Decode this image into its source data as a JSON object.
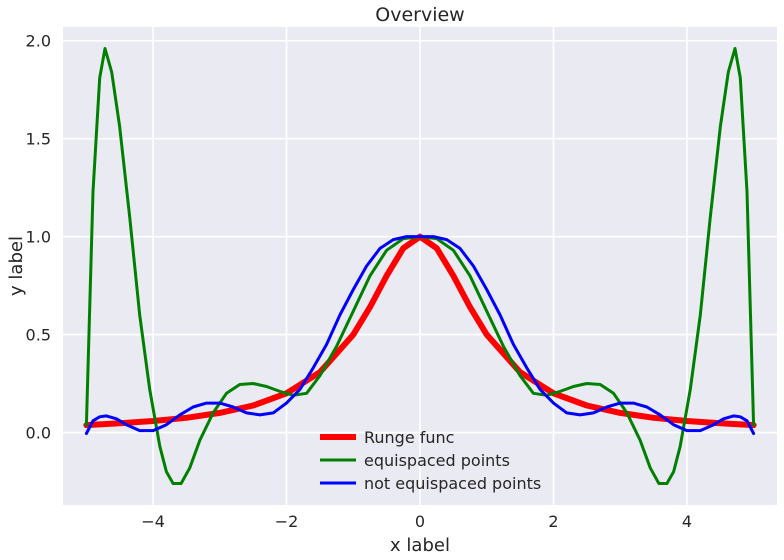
{
  "chart_data": {
    "type": "line",
    "title": "Overview",
    "xlabel": "x label",
    "ylabel": "y label",
    "xlim": [
      -5.35,
      5.35
    ],
    "ylim": [
      -0.37,
      2.07
    ],
    "xticks": [
      -4,
      -2,
      0,
      2,
      4
    ],
    "xtick_labels": [
      "−4",
      "−2",
      "0",
      "2",
      "4"
    ],
    "yticks": [
      0.0,
      0.5,
      1.0,
      1.5,
      2.0
    ],
    "ytick_labels": [
      "0.0",
      "0.5",
      "1.0",
      "1.5",
      "2.0"
    ],
    "grid": true,
    "legend_position": "lower center",
    "colors": {
      "background": "#eaeaf2",
      "grid": "#ffffff"
    },
    "series": [
      {
        "name": "Runge func",
        "color": "#ff0000",
        "width": 6,
        "x": [
          -5,
          -4.5,
          -4,
          -3.5,
          -3,
          -2.5,
          -2,
          -1.5,
          -1,
          -0.75,
          -0.5,
          -0.25,
          0,
          0.25,
          0.5,
          0.75,
          1,
          1.5,
          2,
          2.5,
          3,
          3.5,
          4,
          4.5,
          5
        ],
        "y": [
          0.038,
          0.047,
          0.059,
          0.075,
          0.1,
          0.138,
          0.2,
          0.308,
          0.5,
          0.64,
          0.8,
          0.941,
          1.0,
          0.941,
          0.8,
          0.64,
          0.5,
          0.308,
          0.2,
          0.138,
          0.1,
          0.075,
          0.059,
          0.047,
          0.038
        ]
      },
      {
        "name": "equispaced points",
        "color": "#008000",
        "width": 3,
        "x": [
          -5,
          -4.9,
          -4.8,
          -4.72,
          -4.62,
          -4.5,
          -4.35,
          -4.2,
          -4.05,
          -3.9,
          -3.8,
          -3.7,
          -3.58,
          -3.45,
          -3.3,
          -3.1,
          -2.9,
          -2.7,
          -2.5,
          -2.3,
          -2.1,
          -1.9,
          -1.7,
          -1.5,
          -1.25,
          -1.0,
          -0.75,
          -0.5,
          -0.25,
          0,
          0.25,
          0.5,
          0.75,
          1.0,
          1.25,
          1.5,
          1.7,
          1.9,
          2.1,
          2.3,
          2.5,
          2.7,
          2.9,
          3.1,
          3.3,
          3.45,
          3.58,
          3.7,
          3.8,
          3.9,
          4.05,
          4.2,
          4.35,
          4.5,
          4.62,
          4.72,
          4.8,
          4.9,
          5
        ],
        "y": [
          0.038,
          1.23,
          1.81,
          1.96,
          1.84,
          1.56,
          1.1,
          0.6,
          0.22,
          -0.07,
          -0.2,
          -0.26,
          -0.26,
          -0.18,
          -0.04,
          0.1,
          0.2,
          0.245,
          0.25,
          0.235,
          0.21,
          0.19,
          0.2,
          0.29,
          0.44,
          0.62,
          0.8,
          0.93,
          0.99,
          1.0,
          0.99,
          0.93,
          0.8,
          0.62,
          0.44,
          0.29,
          0.2,
          0.19,
          0.21,
          0.235,
          0.25,
          0.245,
          0.2,
          0.1,
          -0.04,
          -0.18,
          -0.26,
          -0.26,
          -0.2,
          -0.07,
          0.22,
          0.6,
          1.1,
          1.56,
          1.84,
          1.96,
          1.81,
          1.23,
          0.038
        ]
      },
      {
        "name": "not equispaced points",
        "color": "#0000ff",
        "width": 3,
        "x": [
          -5,
          -4.9,
          -4.8,
          -4.7,
          -4.55,
          -4.4,
          -4.2,
          -4.0,
          -3.8,
          -3.6,
          -3.4,
          -3.2,
          -3.0,
          -2.8,
          -2.6,
          -2.4,
          -2.2,
          -2.0,
          -1.8,
          -1.6,
          -1.4,
          -1.2,
          -1.0,
          -0.8,
          -0.6,
          -0.4,
          -0.2,
          0,
          0.2,
          0.4,
          0.6,
          0.8,
          1.0,
          1.2,
          1.4,
          1.6,
          1.8,
          2.0,
          2.2,
          2.4,
          2.6,
          2.8,
          3.0,
          3.2,
          3.4,
          3.6,
          3.8,
          4.0,
          4.2,
          4.4,
          4.55,
          4.7,
          4.8,
          4.9,
          5
        ],
        "y": [
          -0.005,
          0.06,
          0.08,
          0.085,
          0.07,
          0.04,
          0.01,
          0.01,
          0.04,
          0.09,
          0.13,
          0.15,
          0.15,
          0.13,
          0.1,
          0.09,
          0.1,
          0.15,
          0.22,
          0.33,
          0.45,
          0.6,
          0.73,
          0.85,
          0.94,
          0.985,
          1.0,
          1.0,
          1.0,
          0.985,
          0.94,
          0.85,
          0.73,
          0.6,
          0.45,
          0.33,
          0.22,
          0.15,
          0.1,
          0.09,
          0.1,
          0.13,
          0.15,
          0.15,
          0.13,
          0.09,
          0.04,
          0.01,
          0.01,
          0.04,
          0.07,
          0.085,
          0.08,
          0.06,
          -0.005
        ]
      }
    ]
  }
}
